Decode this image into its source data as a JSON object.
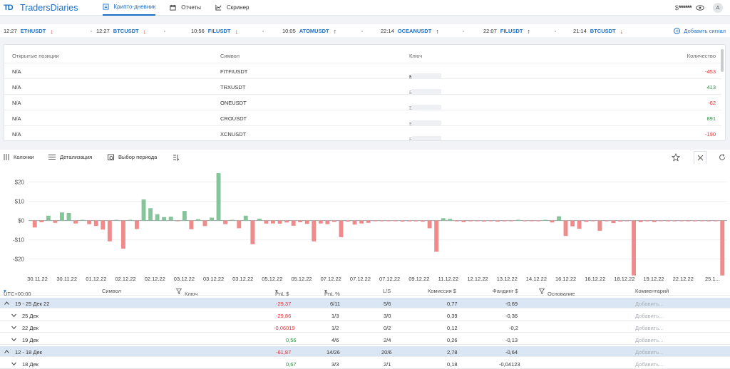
{
  "header": {
    "logo_mark": "TD",
    "logo_text": "TradersDiaries",
    "tabs": [
      {
        "label": "Крипто-дневник",
        "icon": "journal-icon",
        "active": true
      },
      {
        "label": "Отчеты",
        "icon": "calendar-icon",
        "active": false
      },
      {
        "label": "Скринер",
        "icon": "chart-icon",
        "active": false
      }
    ],
    "balance_currency": "$",
    "balance_masked": "******",
    "avatar_initial": "A"
  },
  "signals": [
    {
      "time": "12:27",
      "symbol": "ETHUSDT",
      "direction": "down"
    },
    {
      "time": "12:27",
      "symbol": "BTCUSDT",
      "direction": "down"
    },
    {
      "time": "10:56",
      "symbol": "FILUSDT",
      "direction": "down"
    },
    {
      "time": "10:05",
      "symbol": "ATOMUSDT",
      "direction": "up"
    },
    {
      "time": "22:14",
      "symbol": "OCEANUSDT",
      "direction": "up"
    },
    {
      "time": "22:07",
      "symbol": "FILUSDT",
      "direction": "up"
    },
    {
      "time": "21:14",
      "symbol": "BTCUSDT",
      "direction": "down"
    }
  ],
  "add_signal_label": "Добавить сигнал",
  "arrows": {
    "up": "↑",
    "down": "↓"
  },
  "positions": {
    "headers": {
      "open": "Открытые позиции",
      "symbol": "Символ",
      "key": "Ключ",
      "qty": "Количество"
    },
    "rows": [
      {
        "open": "N/A",
        "symbol": "FITFIUSDT",
        "key": "BYBIT",
        "qty": "-453"
      },
      {
        "open": "N/A",
        "symbol": "TRXUSDT",
        "key": "BYBIT",
        "qty": "413"
      },
      {
        "open": "N/A",
        "symbol": "ONEUSDT",
        "key": "BYBIT",
        "qty": "-62"
      },
      {
        "open": "N/A",
        "symbol": "CROUSDT",
        "key": "BYBIT",
        "qty": "891"
      },
      {
        "open": "N/A",
        "symbol": "XCNUSDT",
        "key": "BYBIT",
        "qty": "-190"
      }
    ]
  },
  "toolbar": {
    "columns": "Колонки",
    "detail": "Детализация",
    "period": "Выбор периода"
  },
  "chart_data": {
    "type": "bar",
    "ylim": [
      -29,
      25
    ],
    "y_ticks": [
      "$20",
      "$10",
      "$0",
      "-$10",
      "-$20"
    ],
    "y_tick_values": [
      20,
      10,
      0,
      -10,
      -20
    ],
    "x_tick_labels": [
      "30.11.22",
      "30.11.22",
      "01.12.22",
      "02.12.22",
      "02.12.22",
      "03.12.22",
      "03.12.22",
      "03.12.22",
      "05.12.22",
      "05.12.22",
      "07.12.22",
      "07.12.22",
      "07.12.22",
      "09.12.22",
      "11.12.22",
      "12.12.22",
      "13.12.22",
      "14.12.22",
      "16.12.22",
      "16.12.22",
      "18.12.22",
      "19.12.22",
      "22.12.22",
      "25.1..."
    ],
    "values": [
      -3.6,
      -0.9,
      2.5,
      -1.2,
      4.2,
      3.9,
      -1.5,
      0,
      -1.9,
      -2.8,
      -4.7,
      -10.8,
      0,
      -14.6,
      0,
      -4.4,
      11,
      6.4,
      3.3,
      1.8,
      2,
      -0.3,
      5,
      -4.5,
      0.7,
      -2.9,
      1.5,
      24.6,
      -1.9,
      0,
      -4,
      2.5,
      -12.3,
      1,
      -1.6,
      -1.5,
      -1.6,
      -1,
      -2.7,
      -0.9,
      -1.7,
      -10.8,
      -1.5,
      -1.9,
      -0.7,
      -8.6,
      -0.5,
      -2.1,
      -1.5,
      -1.2,
      -0.3,
      -0.3,
      -0.2,
      -0.3,
      -0.5,
      -0.4,
      -0.4,
      -0.6,
      -4,
      -16.2,
      1.2,
      0.9,
      -0.4,
      -0.8,
      -0.4,
      -0.2,
      -0.5,
      -0.3,
      -0.6,
      -0.4,
      -0.3,
      0.4,
      -0.2,
      -0.3,
      -0.3,
      0.3,
      -1,
      2.2,
      -8,
      -3,
      -4.3,
      -0.7,
      -0.3,
      -5.3,
      -0.4,
      -1.3,
      -0.5,
      -0.3,
      -28.5,
      -0.8,
      -0.4,
      -0.8,
      -0.3,
      -0.4,
      -0.4,
      -0.3,
      -0.4,
      -0.4,
      -0.3,
      -0.4,
      -0.3,
      -28.5
    ],
    "colors": {
      "positive": "#86c49a",
      "negative": "#ef8b8b"
    }
  },
  "journal": {
    "headers": {
      "tz": "UTC+00:00",
      "symbol": "Символ",
      "key": "Ключ",
      "pnl": "PnL $",
      "pnl_pct": "PnL %",
      "ls": "L/S",
      "commission": "Комиссия $",
      "funding": "Фандинг $",
      "reason": "Основание",
      "comment": "Комментарий"
    },
    "rows": [
      {
        "type": "week",
        "label": "19 - 25 Дек 22",
        "pnl": "-29,37",
        "pnl_sign": "neg",
        "pnl_pct": "6/11",
        "ls": "5/6",
        "commission": "0,77",
        "funding": "-0,69",
        "comment": "Добавить..."
      },
      {
        "type": "day",
        "label": "25 Дек",
        "pnl": "-29,86",
        "pnl_sign": "neg",
        "pnl_pct": "1/3",
        "ls": "3/0",
        "commission": "0,39",
        "funding": "-0,36",
        "comment": "Добавить..."
      },
      {
        "type": "day",
        "label": "22 Дек",
        "pnl": "-0,06019",
        "pnl_sign": "neg",
        "pnl_pct": "1/2",
        "ls": "0/2",
        "commission": "0,12",
        "funding": "-0,2",
        "comment": "Добавить..."
      },
      {
        "type": "day",
        "label": "19 Дек",
        "pnl": "0,56",
        "pnl_sign": "pos",
        "pnl_pct": "4/6",
        "ls": "2/4",
        "commission": "0,26",
        "funding": "-0,13",
        "comment": "Добавить..."
      },
      {
        "type": "week",
        "label": "12 - 18 Дек",
        "pnl": "-61,87",
        "pnl_sign": "neg",
        "pnl_pct": "14/26",
        "ls": "20/6",
        "commission": "2,78",
        "funding": "-0,64",
        "comment": "Добавить..."
      },
      {
        "type": "day",
        "label": "18 Дек",
        "pnl": "0,67",
        "pnl_sign": "pos",
        "pnl_pct": "3/3",
        "ls": "2/1",
        "commission": "0,18",
        "funding": "-0,04123",
        "comment": "Добавить..."
      }
    ]
  }
}
